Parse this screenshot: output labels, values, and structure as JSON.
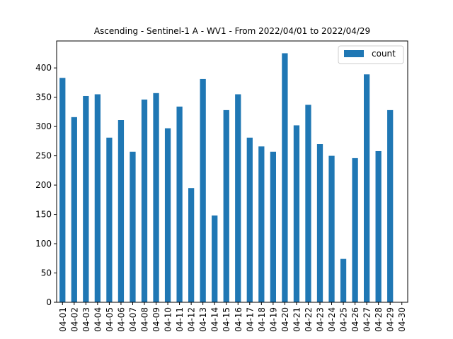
{
  "chart_data": {
    "type": "bar",
    "title": "Ascending - Sentinel-1 A - WV1 - From 2022/04/01 to 2022/04/29",
    "xlabel": "",
    "ylabel": "",
    "categories": [
      "04-01",
      "04-02",
      "04-03",
      "04-04",
      "04-05",
      "04-06",
      "04-07",
      "04-08",
      "04-09",
      "04-10",
      "04-11",
      "04-12",
      "04-13",
      "04-14",
      "04-15",
      "04-16",
      "04-17",
      "04-18",
      "04-19",
      "04-20",
      "04-21",
      "04-22",
      "04-23",
      "04-24",
      "04-25",
      "04-26",
      "04-27",
      "04-28",
      "04-29",
      "04-30"
    ],
    "series": [
      {
        "name": "count",
        "color": "#1f77b4",
        "values": [
          383,
          316,
          352,
          355,
          281,
          311,
          257,
          346,
          357,
          297,
          334,
          195,
          381,
          148,
          328,
          355,
          281,
          266,
          257,
          425,
          302,
          337,
          270,
          250,
          74,
          246,
          389,
          258,
          328,
          0
        ]
      }
    ],
    "ylim": [
      0,
      446
    ],
    "yticks": [
      0,
      50,
      100,
      150,
      200,
      250,
      300,
      350,
      400
    ],
    "grid": false,
    "legend": {
      "position": "top-right",
      "entries": [
        "count"
      ]
    }
  }
}
